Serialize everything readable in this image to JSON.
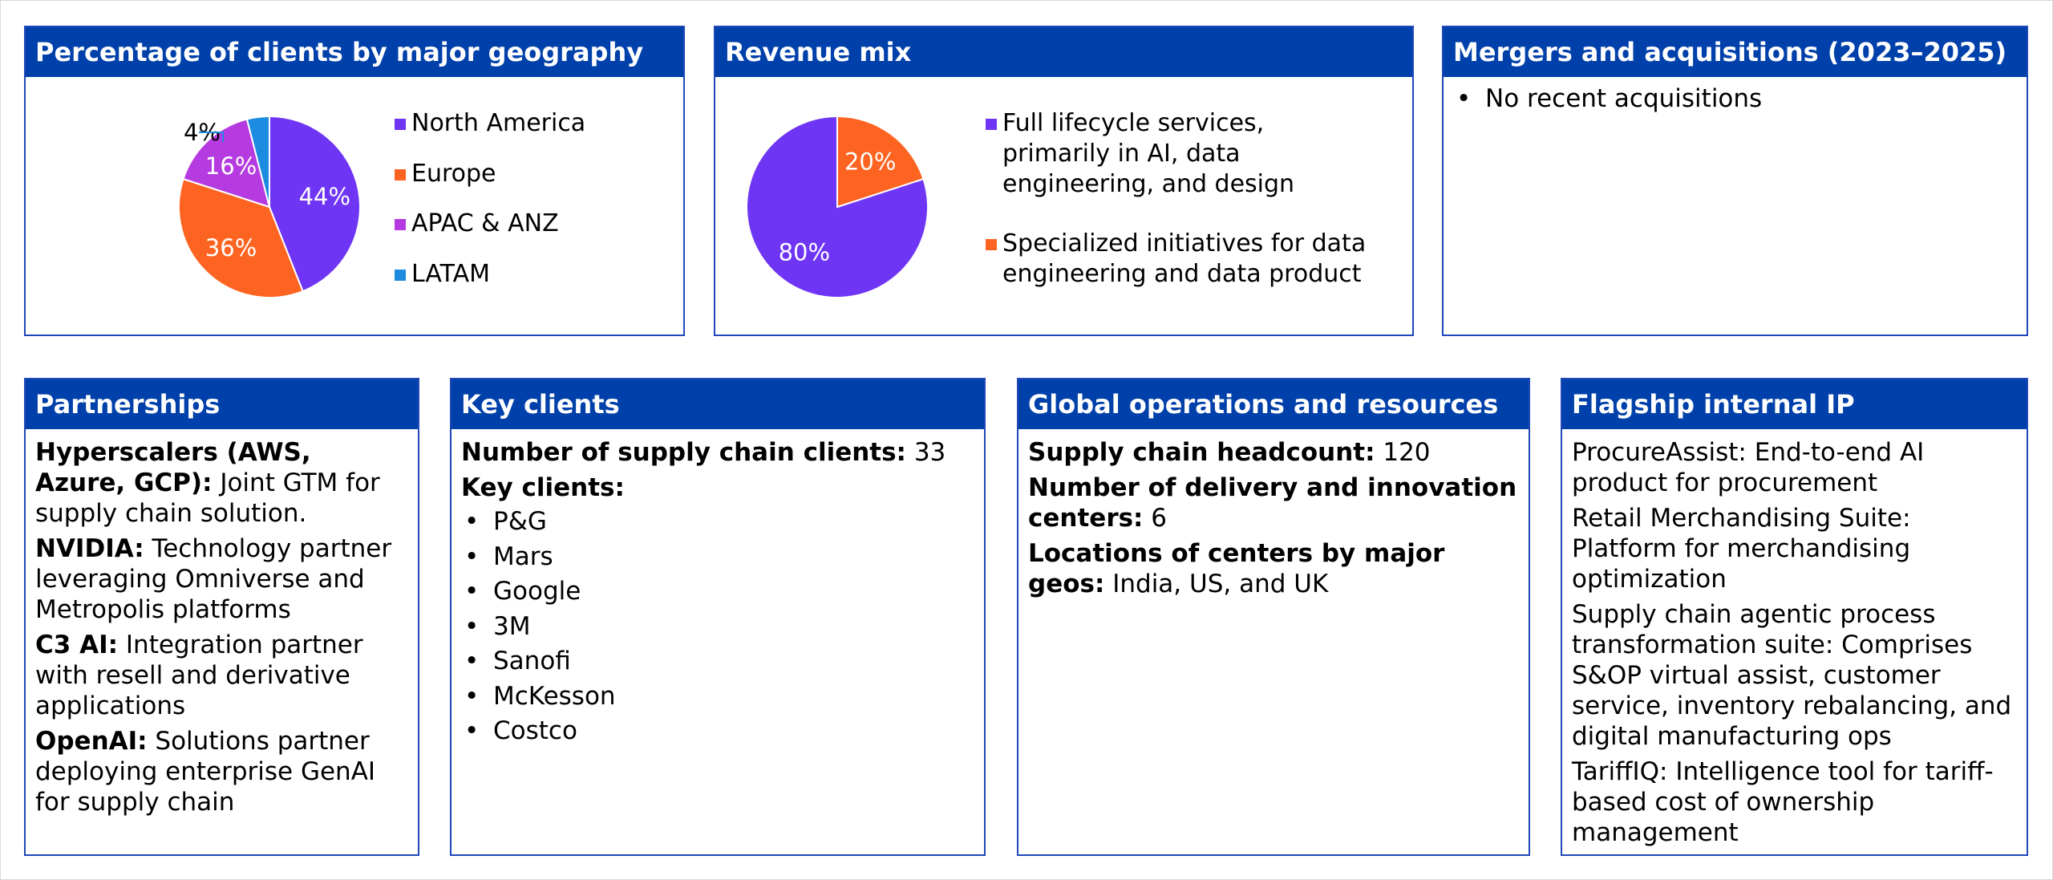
{
  "colors": {
    "header_bg": "#0040aa",
    "border": "#1f48b9",
    "purple": "#6f35f5",
    "orange": "#fe6421",
    "magenta": "#b53be0",
    "blue": "#1c8be0"
  },
  "geo_panel": {
    "title": "Percentage of clients by major geography"
  },
  "revenue_panel": {
    "title": "Revenue mix"
  },
  "ma_panel": {
    "title": "Mergers and acquisitions (2023–2025)",
    "bullets": [
      "No recent acquisitions"
    ]
  },
  "chart_data": [
    {
      "type": "pie",
      "title": "Percentage of clients by major geography",
      "categories": [
        "North America",
        "Europe",
        "APAC & ANZ",
        "LATAM"
      ],
      "values": [
        44,
        36,
        16,
        4
      ],
      "labels": [
        "44%",
        "36%",
        "16%",
        "4%"
      ],
      "colors": [
        "#6f35f5",
        "#fe6421",
        "#b53be0",
        "#1c8be0"
      ],
      "legend_placement": "right"
    },
    {
      "type": "pie",
      "title": "Revenue mix",
      "categories": [
        "Full lifecycle services, primarily in AI, data engineering, and design",
        "Specialized initiatives for data engineering and data product"
      ],
      "values": [
        80,
        20
      ],
      "labels": [
        "80%",
        "20%"
      ],
      "colors": [
        "#6f35f5",
        "#fe6421"
      ],
      "legend_placement": "right"
    }
  ],
  "revenue_legend": [
    [
      "Full lifecycle services,",
      "primarily in AI, data",
      "engineering, and design"
    ],
    [
      "Specialized initiatives for data",
      "engineering and data product"
    ]
  ],
  "partnerships": {
    "title": "Partnerships",
    "items": [
      {
        "label": "Hyperscalers (AWS, Azure, GCP):",
        "text": " Joint GTM for supply chain solution."
      },
      {
        "label": "NVIDIA:",
        "text": " Technology partner leveraging Omniverse and Metropolis platforms"
      },
      {
        "label": "C3 AI:",
        "text": " Integration partner with resell and derivative applications"
      },
      {
        "label": "OpenAI:",
        "text": " Solutions partner deploying enterprise GenAI for supply chain"
      }
    ]
  },
  "key_clients": {
    "title": "Key clients",
    "count_label": "Number of supply chain clients:",
    "count_value": " 33",
    "list_label": "Key clients:",
    "clients": [
      "P&G",
      "Mars",
      "Google",
      "3M",
      "Sanofi",
      "McKesson",
      "Costco"
    ]
  },
  "global_ops": {
    "title": "Global operations and resources",
    "items": [
      {
        "label": "Supply chain headcount:",
        "text": " 120"
      },
      {
        "label": "Number of delivery and innovation centers:",
        "text": " 6"
      },
      {
        "label": "Locations of centers by major geos:",
        "text": " India, US, and UK"
      }
    ]
  },
  "flagship_ip": {
    "title": "Flagship internal IP",
    "items": [
      "ProcureAssist: End-to-end AI product for procurement",
      "Retail Merchandising Suite: Platform for merchandising optimization",
      "Supply chain agentic process transformation suite: Comprises S&OP virtual assist, customer service, inventory rebalancing, and digital manufacturing ops",
      "TariffIQ: Intelligence tool for tariff-based cost of ownership management"
    ]
  }
}
